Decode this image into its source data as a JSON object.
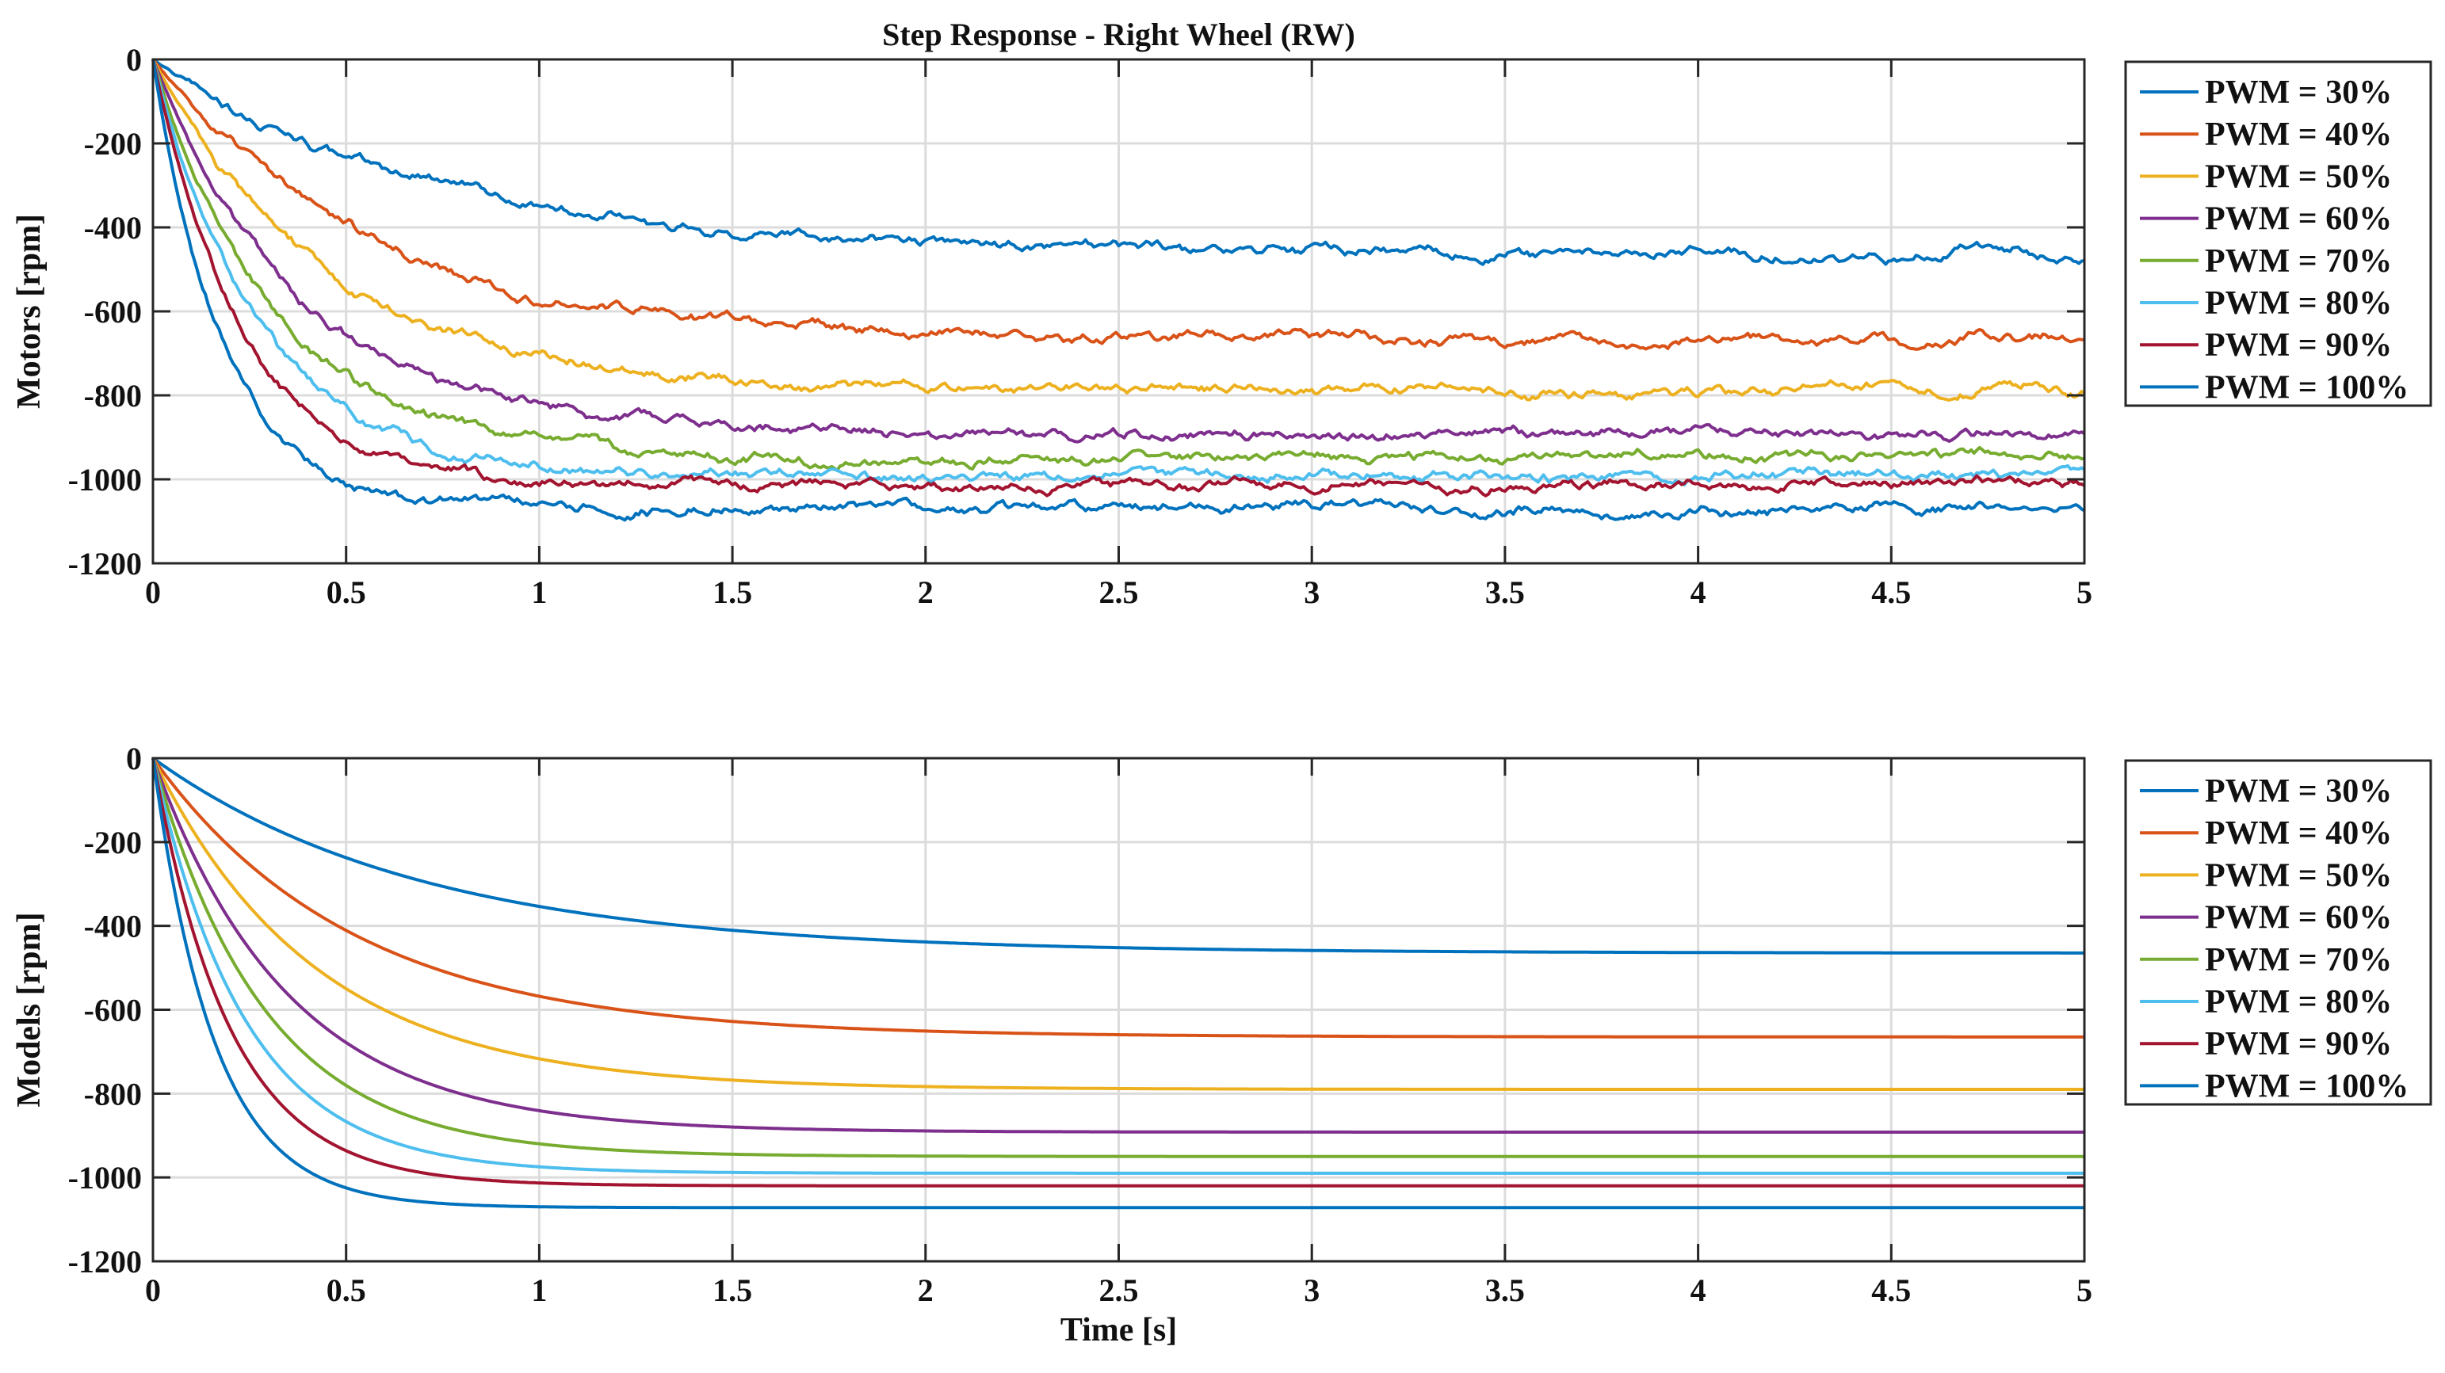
{
  "chart_data": [
    {
      "type": "line",
      "title": "Step Response - Right Wheel (RW)",
      "xlabel": "",
      "ylabel": "Motors [rpm]",
      "xlim": [
        0,
        5
      ],
      "ylim": [
        -1200,
        0
      ],
      "xticks": [
        "0",
        "0.5",
        "1",
        "1.5",
        "2",
        "2.5",
        "3",
        "3.5",
        "4",
        "4.5",
        "5"
      ],
      "yticks": [
        "0",
        "-200",
        "-400",
        "-600",
        "-800",
        "-1000",
        "-1200"
      ],
      "grid": true,
      "legend_position": "outside-right",
      "noisy": true,
      "series": [
        {
          "name": "PWM = 30%",
          "color": "#0072BD",
          "steady": -465,
          "tau": 0.72
        },
        {
          "name": "PWM = 40%",
          "color": "#D95319",
          "steady": -665,
          "tau": 0.55
        },
        {
          "name": "PWM = 50%",
          "color": "#EDB120",
          "steady": -790,
          "tau": 0.45
        },
        {
          "name": "PWM = 60%",
          "color": "#7E2F8E",
          "steady": -890,
          "tau": 0.38
        },
        {
          "name": "PWM = 70%",
          "color": "#77AC30",
          "steady": -950,
          "tau": 0.32
        },
        {
          "name": "PWM = 80%",
          "color": "#4DBEEE",
          "steady": -990,
          "tau": 0.27
        },
        {
          "name": "PWM = 90%",
          "color": "#A2142F",
          "steady": -1015,
          "tau": 0.23
        },
        {
          "name": "PWM = 100%",
          "color": "#0072BD",
          "steady": -1070,
          "tau": 0.18
        }
      ]
    },
    {
      "type": "line",
      "title": "",
      "xlabel": "Time [s]",
      "ylabel": "Models [rpm]",
      "xlim": [
        0,
        5
      ],
      "ylim": [
        -1200,
        0
      ],
      "xticks": [
        "0",
        "0.5",
        "1",
        "1.5",
        "2",
        "2.5",
        "3",
        "3.5",
        "4",
        "4.5",
        "5"
      ],
      "yticks": [
        "0",
        "-200",
        "-400",
        "-600",
        "-800",
        "-1000",
        "-1200"
      ],
      "grid": true,
      "legend_position": "outside-right",
      "noisy": false,
      "series": [
        {
          "name": "PWM = 30%",
          "color": "#0072BD",
          "steady": -465,
          "tau": 0.7
        },
        {
          "name": "PWM = 40%",
          "color": "#D95319",
          "steady": -665,
          "tau": 0.52
        },
        {
          "name": "PWM = 50%",
          "color": "#EDB120",
          "steady": -790,
          "tau": 0.42
        },
        {
          "name": "PWM = 60%",
          "color": "#7E2F8E",
          "steady": -892,
          "tau": 0.35
        },
        {
          "name": "PWM = 70%",
          "color": "#77AC30",
          "steady": -950,
          "tau": 0.29
        },
        {
          "name": "PWM = 80%",
          "color": "#4DBEEE",
          "steady": -990,
          "tau": 0.24
        },
        {
          "name": "PWM = 90%",
          "color": "#A2142F",
          "steady": -1020,
          "tau": 0.2
        },
        {
          "name": "PWM = 100%",
          "color": "#0072BD",
          "steady": -1072,
          "tau": 0.16
        }
      ]
    }
  ]
}
